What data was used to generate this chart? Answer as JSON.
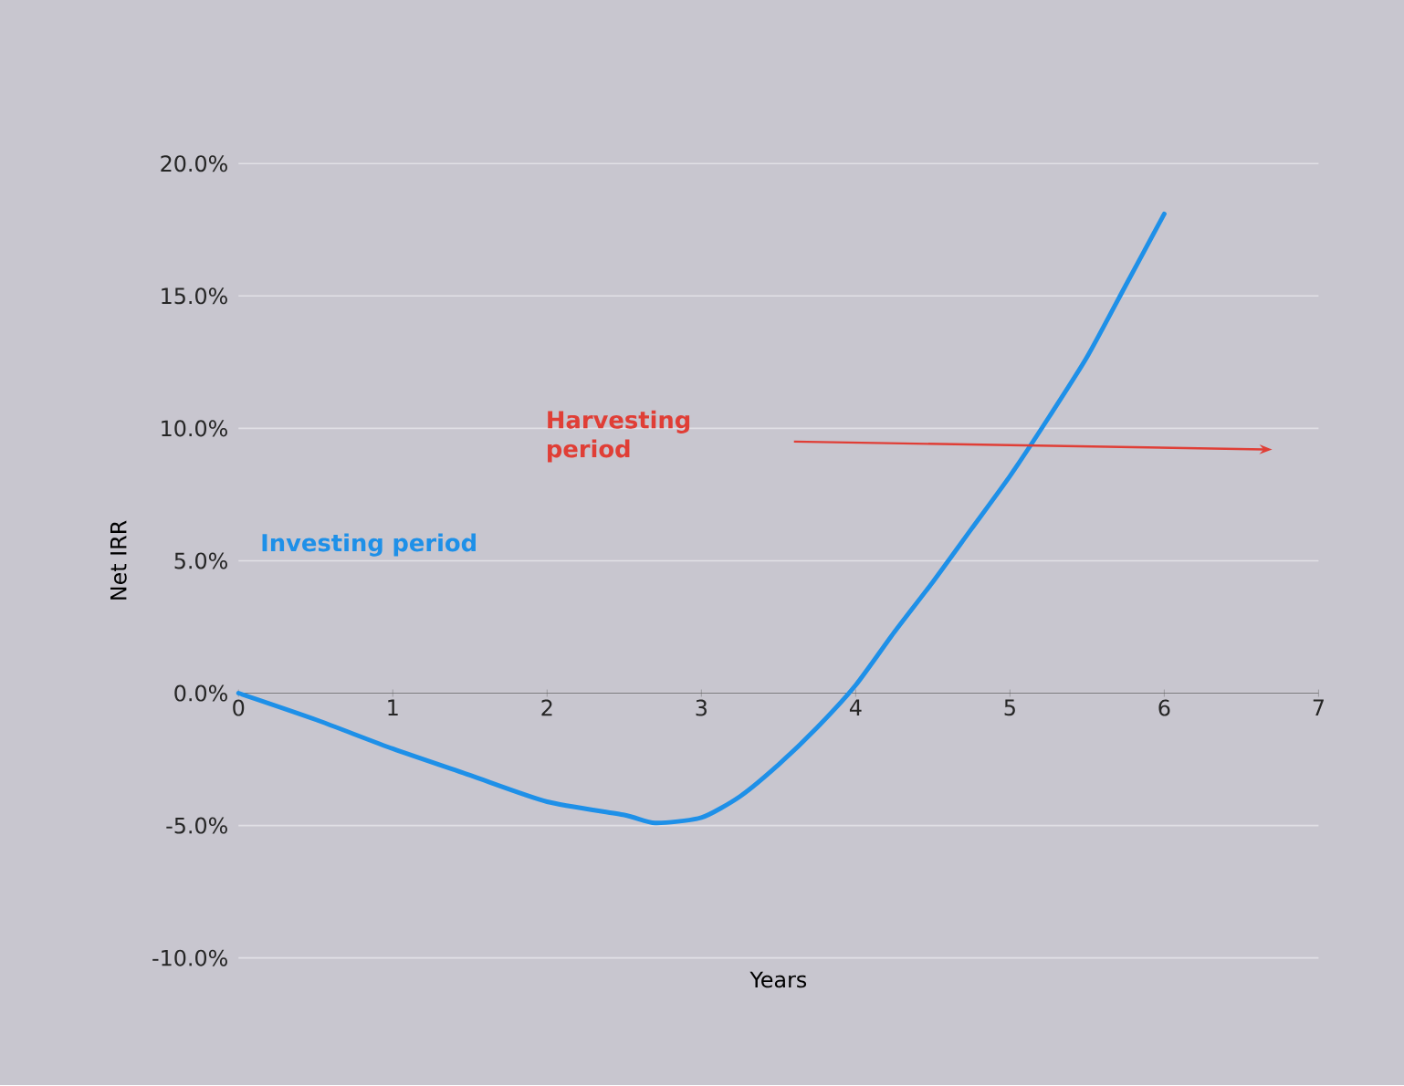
{
  "chart_data": {
    "type": "line",
    "xlabel": "Years",
    "ylabel": "Net IRR",
    "x": [
      0,
      0.5,
      1,
      1.5,
      2,
      2.5,
      2.7,
      3,
      3.25,
      3.5,
      3.75,
      4,
      4.25,
      4.5,
      4.75,
      5,
      5.25,
      5.5,
      5.75,
      6
    ],
    "series": [
      {
        "color": "#1e90e8",
        "values": [
          0,
          -1.0,
          -2.1,
          -3.1,
          -4.1,
          -4.6,
          -4.9,
          -4.7,
          -3.9,
          -2.7,
          -1.3,
          0.3,
          2.3,
          4.2,
          6.2,
          8.2,
          10.4,
          12.7,
          15.4,
          18.1
        ]
      }
    ],
    "xlim": [
      0,
      7
    ],
    "xticks": [
      0,
      1,
      2,
      3,
      4,
      5,
      6,
      7
    ],
    "ylim": [
      -10,
      20
    ],
    "yticks": [
      {
        "value": -10,
        "label": "-10.0%"
      },
      {
        "value": -5,
        "label": "-5.0%"
      },
      {
        "value": 0,
        "label": "0.0%"
      },
      {
        "value": 5,
        "label": "5.0%"
      },
      {
        "value": 10,
        "label": "10.0%"
      },
      {
        "value": 15,
        "label": "15.0%"
      },
      {
        "value": 20,
        "label": "20.0%"
      }
    ],
    "grid": "y",
    "annotations": [
      "Investing period",
      "Harvesting period"
    ]
  }
}
